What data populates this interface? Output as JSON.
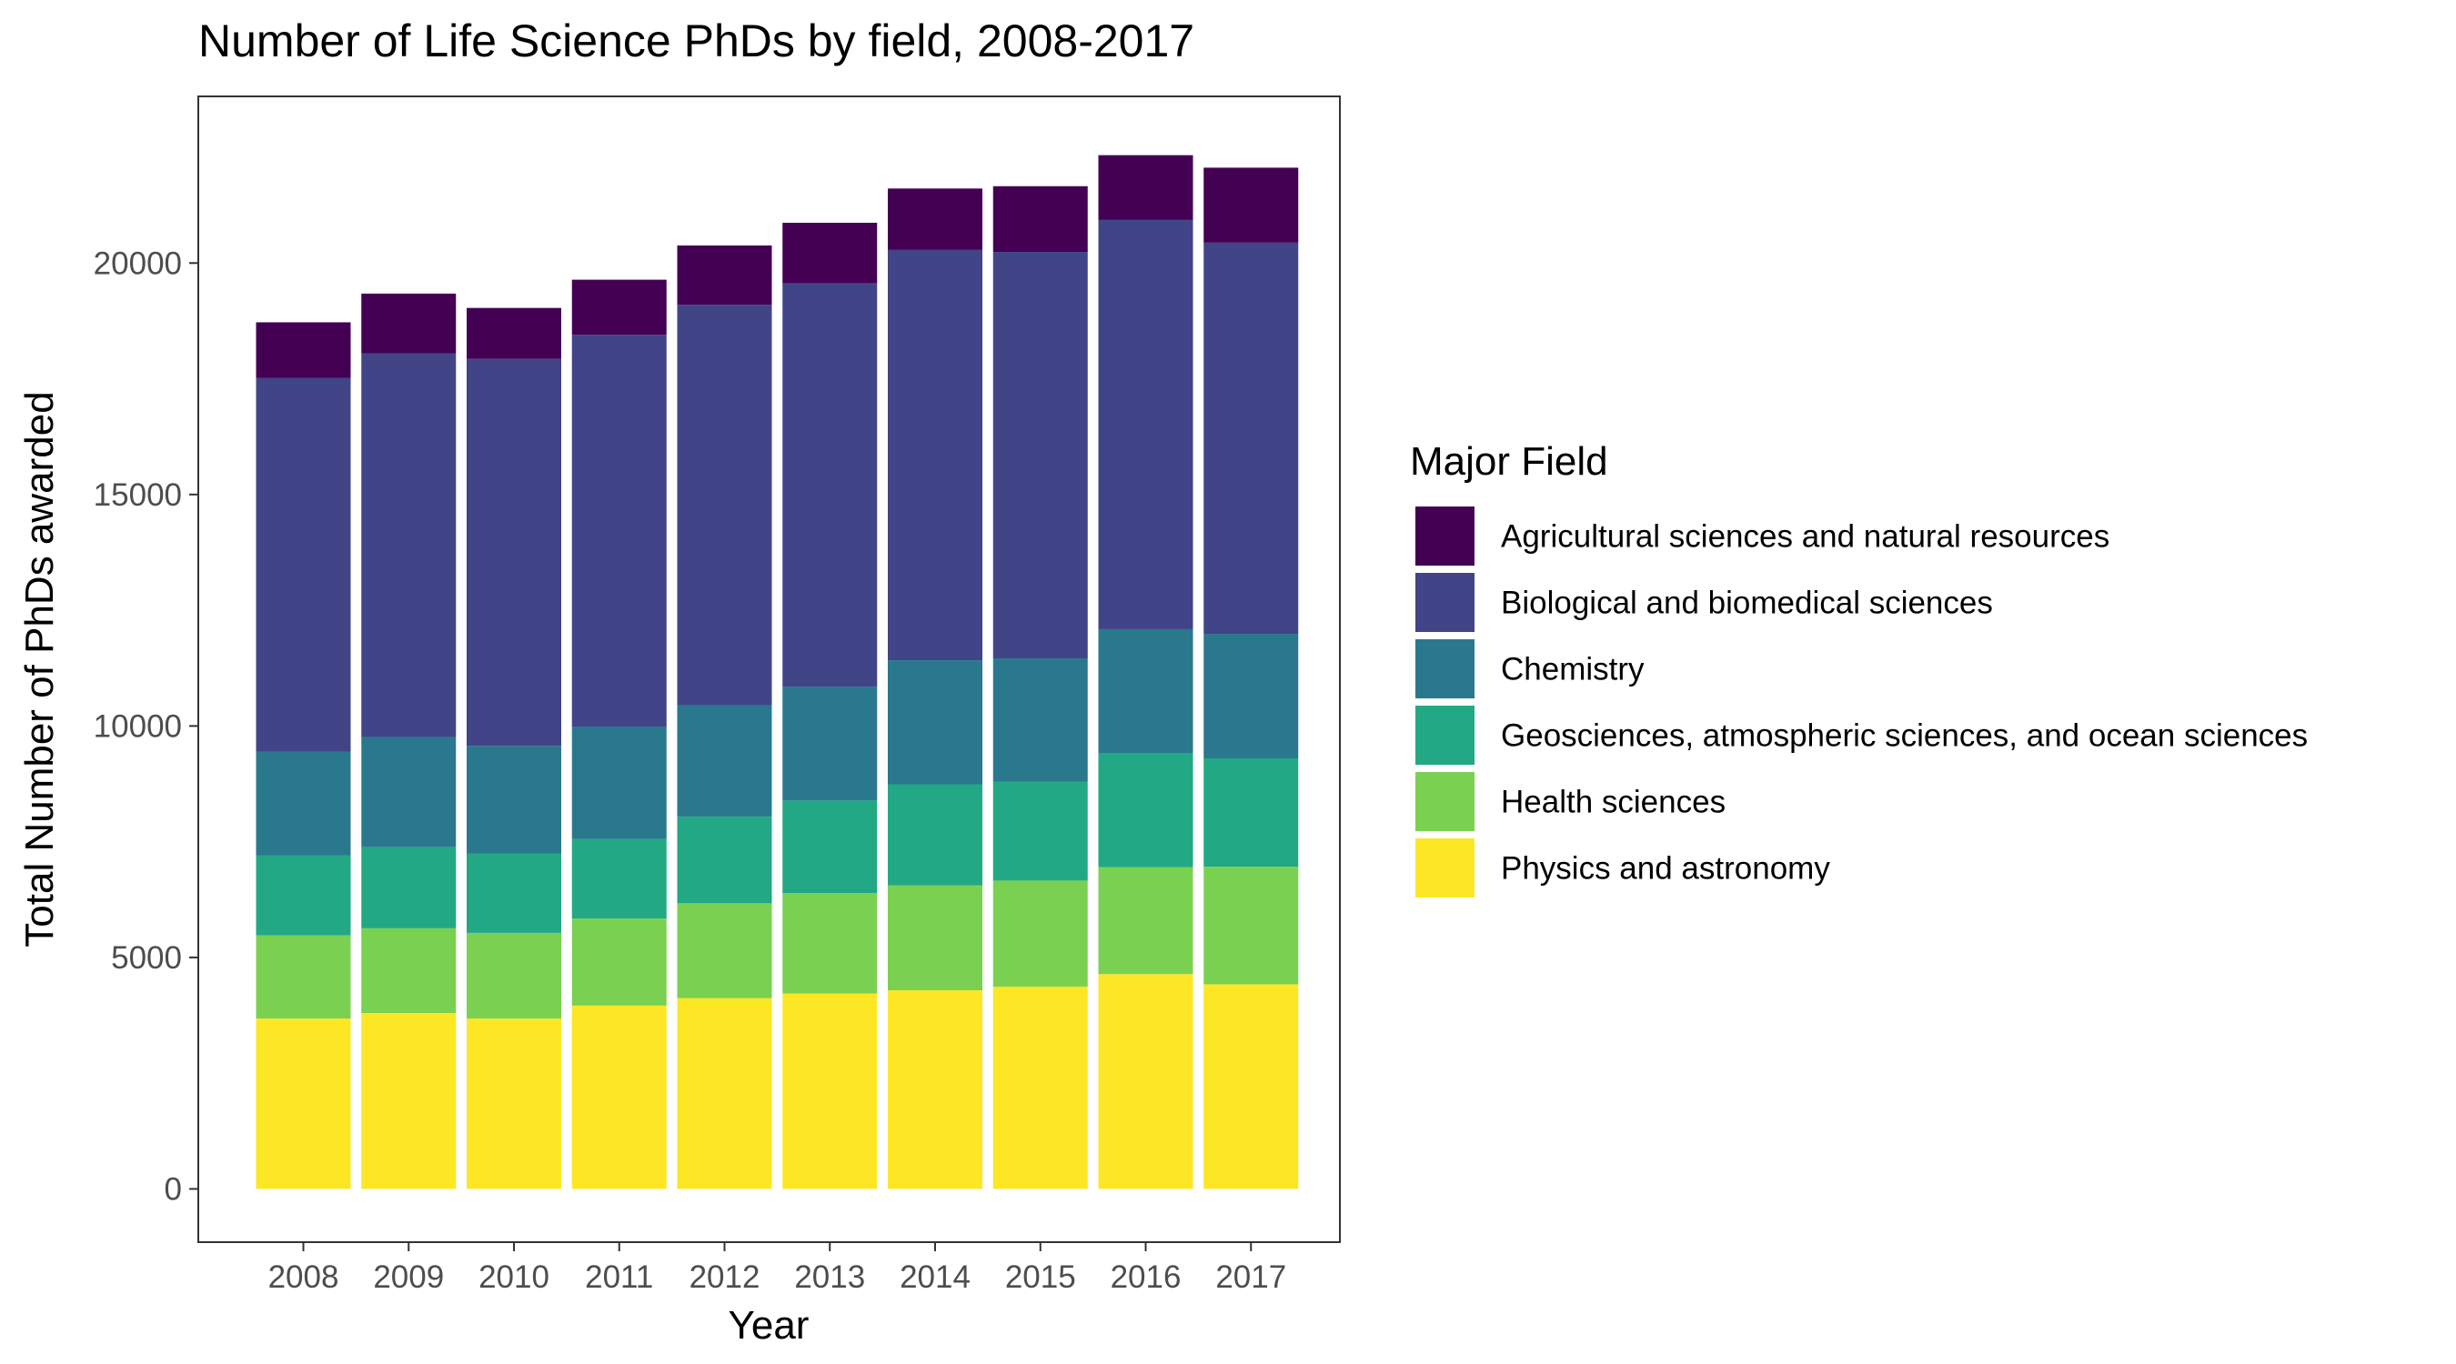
{
  "chart_data": {
    "type": "bar",
    "stacked": true,
    "title": "Number of Life Science PhDs by field, 2008-2017",
    "xlabel": "Year",
    "ylabel": "Total Number of PhDs awarded",
    "categories": [
      "2008",
      "2009",
      "2010",
      "2011",
      "2012",
      "2013",
      "2014",
      "2015",
      "2016",
      "2017"
    ],
    "ylim": [
      -1150,
      23600
    ],
    "yticks": [
      0,
      5000,
      10000,
      15000,
      20000
    ],
    "grid": false,
    "legend": {
      "title": "Major Field",
      "position": "right"
    },
    "series": [
      {
        "name": "Physics and astronomy",
        "color": "#FDE725",
        "values": [
          3680,
          3800,
          3680,
          3960,
          4120,
          4220,
          4290,
          4370,
          4640,
          4420
        ]
      },
      {
        "name": "Health sciences",
        "color": "#7AD151",
        "values": [
          1800,
          1830,
          1850,
          1880,
          2050,
          2170,
          2270,
          2290,
          2310,
          2540
        ]
      },
      {
        "name": "Geosciences, atmospheric sciences, and ocean sciences",
        "color": "#22A884",
        "values": [
          1720,
          1750,
          1710,
          1720,
          1870,
          2000,
          2180,
          2140,
          2460,
          2340
        ]
      },
      {
        "name": "Chemistry",
        "color": "#2A788E",
        "values": [
          2240,
          2380,
          2330,
          2420,
          2410,
          2460,
          2680,
          2660,
          2680,
          2690
        ]
      },
      {
        "name": "Biological and biomedical sciences",
        "color": "#414487",
        "values": [
          8080,
          8290,
          8360,
          8470,
          8650,
          8710,
          8870,
          8780,
          8840,
          8450
        ]
      },
      {
        "name": "Agricultural sciences and natural resources",
        "color": "#440154",
        "values": [
          1200,
          1290,
          1100,
          1190,
          1280,
          1310,
          1320,
          1420,
          1400,
          1620
        ]
      }
    ]
  }
}
